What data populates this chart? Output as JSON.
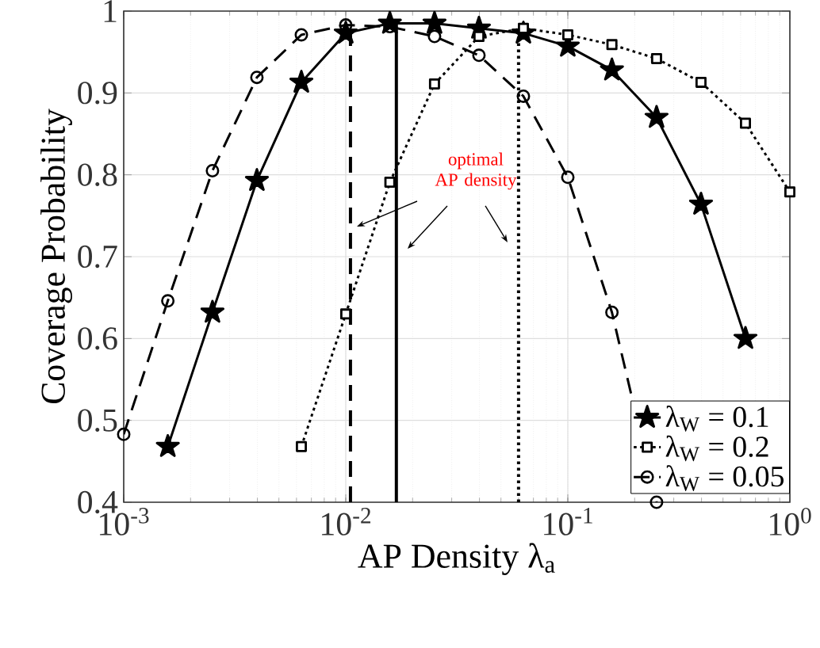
{
  "chart_data": {
    "type": "line",
    "xlabel": "AP Density λ$_{a}$",
    "ylabel": "Coverage Probability",
    "log": "x",
    "grid": true,
    "legend": "bottom right",
    "xlim": [
      0.001,
      1
    ],
    "ylim": [
      0.4,
      1
    ],
    "xticks": [
      {
        "value": 0.001,
        "label": "10$^{-3}$"
      },
      {
        "value": 0.01,
        "label": "10$^{-2}$"
      },
      {
        "value": 0.1,
        "label": "10$^{-1}$"
      },
      {
        "value": 1,
        "label": "10$^{0}$"
      }
    ],
    "yticks": [
      0.4,
      0.5,
      0.6,
      0.7,
      0.8,
      0.9,
      1
    ],
    "annotations": [
      "optimal AP density"
    ],
    "series": [
      {
        "name": "λ$_{W}$ = 0.1",
        "color": "#000000",
        "marker": "star",
        "line_style": "solid",
        "x": [
          0.00158,
          0.00251,
          0.00398,
          0.00631,
          0.01,
          0.0158,
          0.0251,
          0.0398,
          0.0631,
          0.1,
          0.158,
          0.251,
          0.398,
          0.631
        ],
        "values": [
          0.468,
          0.632,
          0.793,
          0.913,
          0.973,
          0.985,
          0.985,
          0.979,
          0.973,
          0.957,
          0.928,
          0.87,
          0.764,
          0.6
        ]
      },
      {
        "name": "λ$_{W}$ = 0.2",
        "color": "#000000",
        "marker": "square",
        "line_style": "dotted",
        "x": [
          0.00631,
          0.01,
          0.0158,
          0.0251,
          0.0398,
          0.0631,
          0.1,
          0.158,
          0.251,
          0.398,
          0.631,
          1
        ],
        "values": [
          0.468,
          0.63,
          0.791,
          0.911,
          0.969,
          0.979,
          0.971,
          0.959,
          0.942,
          0.913,
          0.863,
          0.779
        ]
      },
      {
        "name": "λ$_{W}$ = 0.05",
        "color": "#000000",
        "marker": "circle",
        "line_style": "dashed",
        "x": [
          0.001,
          0.00158,
          0.00251,
          0.00398,
          0.00631,
          0.01,
          0.0158,
          0.0251,
          0.0398,
          0.0631,
          0.1,
          0.158,
          0.251
        ],
        "values": [
          0.483,
          0.646,
          0.805,
          0.919,
          0.971,
          0.983,
          0.981,
          0.969,
          0.946,
          0.896,
          0.797,
          0.632,
          0.4
        ]
      },
      {
        "type": "line",
        "color": "#000000",
        "marker": "none",
        "line_style": "dashed",
        "x": [
          0.0105,
          0.0105
        ],
        "values": [
          0.4,
          0.983
        ]
      },
      {
        "type": "line",
        "color": "#000000",
        "marker": "none",
        "line_style": "solid",
        "x": [
          0.0169,
          0.0169
        ],
        "values": [
          0.4,
          0.985
        ]
      },
      {
        "type": "line",
        "color": "#000000",
        "marker": "none",
        "line_style": "dotted",
        "x": [
          0.06,
          0.06
        ],
        "values": [
          0.4,
          0.979
        ]
      }
    ]
  }
}
